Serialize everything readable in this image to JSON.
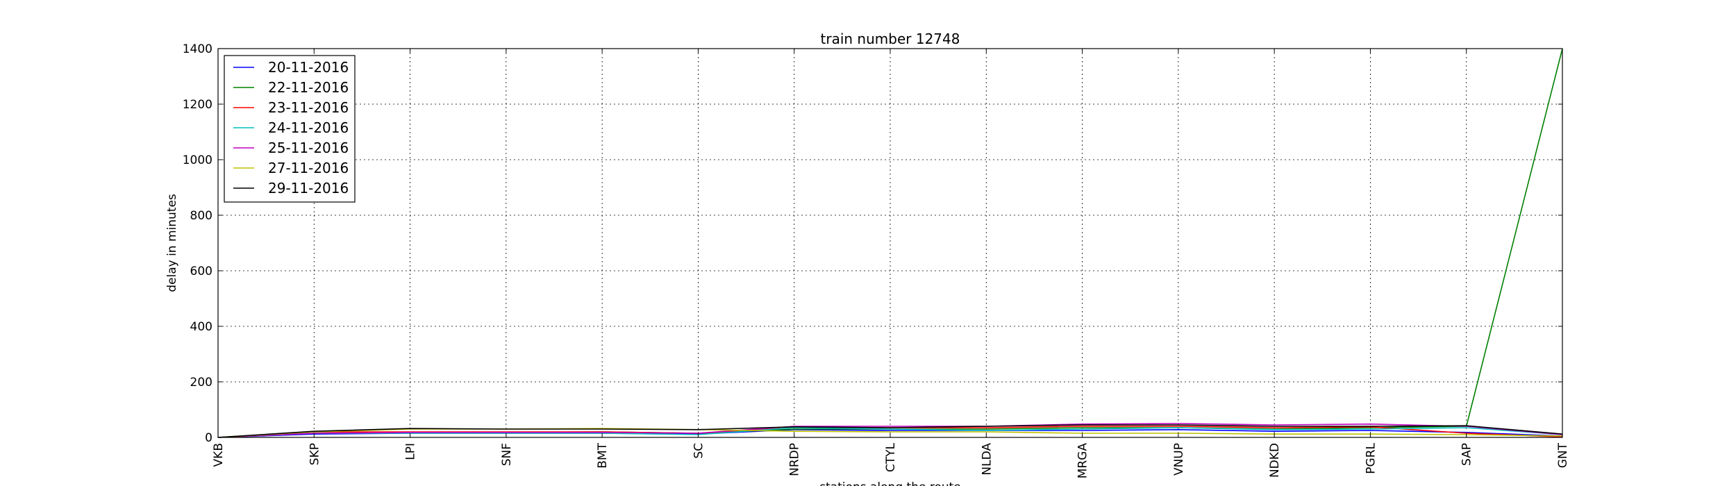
{
  "chart_data": {
    "type": "line",
    "title": "train number 12748",
    "xlabel": "stations along the route",
    "ylabel": "delay in minutes",
    "categories": [
      "VKB",
      "SKP",
      "LPI",
      "SNF",
      "BMT",
      "SC",
      "NRDP",
      "CTYL",
      "NLDA",
      "MRGA",
      "VNUP",
      "NDKD",
      "PGRL",
      "SAP",
      "GNT"
    ],
    "ylim": [
      0,
      1400
    ],
    "yticks": [
      0,
      200,
      400,
      600,
      800,
      1000,
      1200,
      1400
    ],
    "grid": true,
    "legend_position": "top-left",
    "series": [
      {
        "name": "20-11-2016",
        "color": "#0000ff",
        "values": [
          0,
          12,
          15,
          15,
          15,
          12,
          28,
          25,
          25,
          25,
          28,
          22,
          25,
          18,
          5
        ]
      },
      {
        "name": "22-11-2016",
        "color": "#008000",
        "values": [
          0,
          15,
          18,
          18,
          20,
          15,
          30,
          30,
          30,
          35,
          35,
          30,
          35,
          40,
          1400
        ]
      },
      {
        "name": "23-11-2016",
        "color": "#ff0000",
        "values": [
          0,
          20,
          20,
          20,
          20,
          15,
          35,
          35,
          35,
          40,
          40,
          35,
          38,
          15,
          2
        ]
      },
      {
        "name": "24-11-2016",
        "color": "#00bfbf",
        "values": [
          0,
          15,
          15,
          15,
          15,
          10,
          35,
          30,
          25,
          30,
          35,
          28,
          30,
          35,
          10
        ]
      },
      {
        "name": "25-11-2016",
        "color": "#bf00bf",
        "values": [
          0,
          15,
          18,
          18,
          18,
          15,
          40,
          40,
          40,
          48,
          50,
          45,
          48,
          40,
          10
        ]
      },
      {
        "name": "27-11-2016",
        "color": "#bfbf00",
        "values": [
          0,
          20,
          30,
          30,
          32,
          28,
          22,
          20,
          20,
          15,
          15,
          12,
          12,
          10,
          5
        ]
      },
      {
        "name": "29-11-2016",
        "color": "#000000",
        "values": [
          0,
          22,
          32,
          30,
          30,
          28,
          38,
          35,
          40,
          45,
          45,
          40,
          40,
          42,
          12
        ]
      }
    ]
  }
}
